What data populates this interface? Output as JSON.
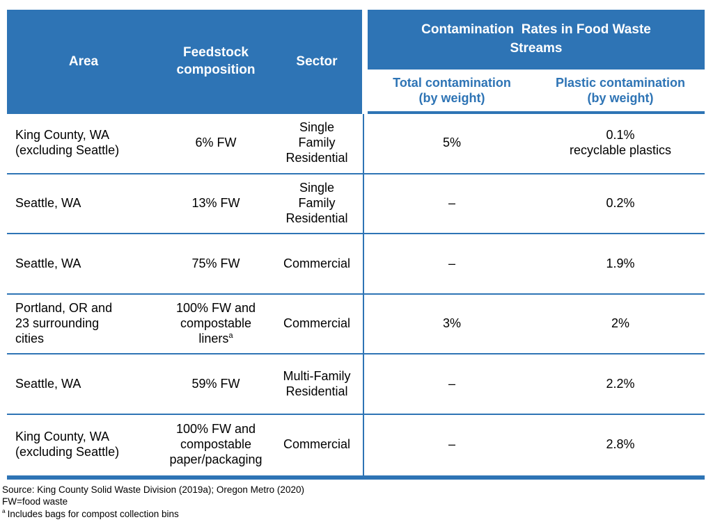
{
  "accent_color": "#2E74B5",
  "header": {
    "area": "Area",
    "feedstock": "Feedstock\ncomposition",
    "sector": "Sector",
    "banner": "Contamination  Rates in Food Waste\nStreams",
    "total": "Total contamination\n(by weight)",
    "plastic": "Plastic contamination\n(by weight)"
  },
  "rows": [
    {
      "area": "King County, WA\n(excluding Seattle)",
      "feedstock": "6% FW",
      "sector": "Single\nFamily\nResidential",
      "total": "5%",
      "plastic": "0.1%\nrecyclable plastics"
    },
    {
      "area": "Seattle, WA",
      "feedstock": "13% FW",
      "sector": "Single\nFamily\nResidential",
      "total": "–",
      "plastic": "0.2%"
    },
    {
      "area": "Seattle, WA",
      "feedstock": "75% FW",
      "sector": "Commercial",
      "total": "–",
      "plastic": "1.9%"
    },
    {
      "area": "Portland, OR and\n23 surrounding\ncities",
      "feedstock": "100% FW and\ncompostable\nliners",
      "feedstock_sup": "a",
      "sector": "Commercial",
      "total": "3%",
      "plastic": "2%"
    },
    {
      "area": "Seattle, WA",
      "feedstock": "59% FW",
      "sector": "Multi-Family\nResidential",
      "total": "–",
      "plastic": "2.2%"
    },
    {
      "area": "King County, WA\n(excluding Seattle)",
      "feedstock": "100% FW and\ncompostable\npaper/packaging",
      "sector": "Commercial",
      "total": "–",
      "plastic": "2.8%"
    }
  ],
  "footnotes": {
    "source": "Source: King County Solid Waste Division (2019a); Oregon Metro (2020)",
    "fw": "FW=food waste",
    "note_a_sup": "a",
    "note_a": "Includes bags for compost collection bins"
  }
}
